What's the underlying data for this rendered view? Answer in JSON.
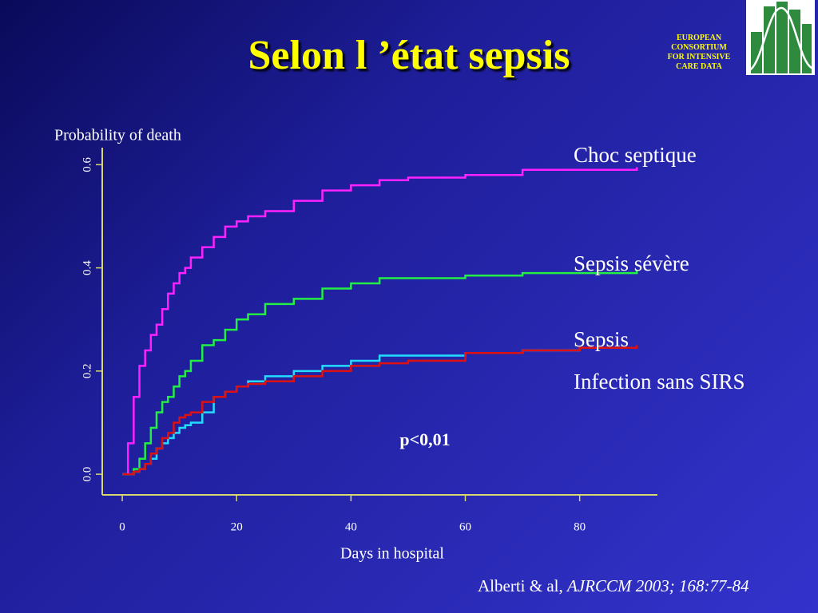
{
  "slide": {
    "title": "Selon l ’état sepsis",
    "logo_text": "EUROPEAN CONSORTIUM FOR INTENSIVE CARE DATA",
    "citation_authors": "Alberti & al,",
    "citation_source": "AJRCCM 2003; 168:77-84"
  },
  "chart_data": {
    "type": "line",
    "step": true,
    "ylabel": "Probability of death",
    "xlabel": "Days in hospital",
    "annotation": "p<0,01",
    "x": [
      0,
      1,
      2,
      3,
      4,
      5,
      6,
      7,
      8,
      9,
      10,
      11,
      12,
      14,
      16,
      18,
      20,
      22,
      25,
      30,
      35,
      40,
      45,
      50,
      60,
      70,
      80,
      90
    ],
    "series": [
      {
        "name": "Choc septique",
        "color": "#ff22ff",
        "values": [
          0,
          0.06,
          0.15,
          0.21,
          0.24,
          0.27,
          0.29,
          0.32,
          0.35,
          0.37,
          0.39,
          0.4,
          0.42,
          0.44,
          0.46,
          0.48,
          0.49,
          0.5,
          0.51,
          0.53,
          0.55,
          0.56,
          0.57,
          0.575,
          0.58,
          0.59,
          0.59,
          0.595
        ]
      },
      {
        "name": "Sepsis sévère",
        "color": "#22ee44",
        "values": [
          0,
          0,
          0.01,
          0.03,
          0.06,
          0.09,
          0.12,
          0.14,
          0.15,
          0.17,
          0.19,
          0.2,
          0.22,
          0.25,
          0.26,
          0.28,
          0.3,
          0.31,
          0.33,
          0.34,
          0.36,
          0.37,
          0.38,
          0.38,
          0.385,
          0.39,
          0.39,
          0.395
        ]
      },
      {
        "name": "Sepsis",
        "color": "#22ddff",
        "values": [
          0,
          0,
          0.005,
          0.01,
          0.02,
          0.03,
          0.05,
          0.06,
          0.07,
          0.08,
          0.09,
          0.095,
          0.1,
          0.12,
          0.15,
          0.16,
          0.17,
          0.18,
          0.19,
          0.2,
          0.21,
          0.22,
          0.23,
          0.23,
          0.235,
          0.24,
          0.245,
          0.245
        ]
      },
      {
        "name": "Infection sans SIRS",
        "color": "#dd1111",
        "values": [
          0,
          0,
          0.005,
          0.01,
          0.02,
          0.04,
          0.05,
          0.07,
          0.08,
          0.1,
          0.11,
          0.115,
          0.12,
          0.14,
          0.15,
          0.16,
          0.17,
          0.175,
          0.18,
          0.19,
          0.2,
          0.21,
          0.215,
          0.22,
          0.235,
          0.24,
          0.245,
          0.25
        ]
      }
    ],
    "xlim": [
      -3.5,
      93.6
    ],
    "ylim": [
      -0.04,
      0.633
    ],
    "xticks": [
      0,
      20,
      40,
      60,
      80
    ],
    "yticks": [
      {
        "value": 0,
        "label": "0.0"
      },
      0.2,
      0.4,
      0.6
    ]
  }
}
